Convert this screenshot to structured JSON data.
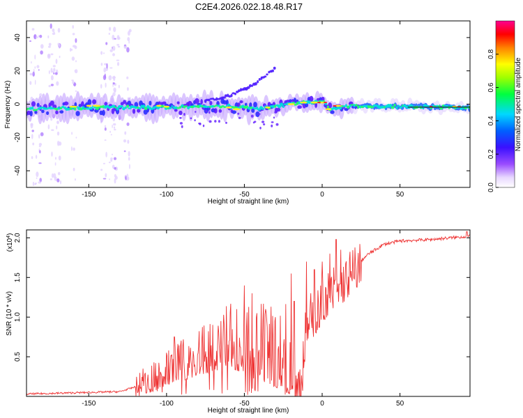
{
  "title": "C2E4.2026.022.18.48.R17",
  "chart_data": [
    {
      "type": "heatmap",
      "xlabel": "Height of straight line (km)",
      "ylabel": "Frequency (Hz)",
      "xlim": [
        -190,
        95
      ],
      "ylim": [
        -50,
        50
      ],
      "xticks": [
        -150,
        -100,
        -50,
        0,
        50
      ],
      "yticks": [
        -40,
        -20,
        0,
        20,
        40
      ],
      "colorbar": {
        "label": "Normalized spectral amplitude",
        "range": [
          0,
          1
        ],
        "ticks": [
          0.0,
          0.2,
          0.4,
          0.6,
          0.8
        ],
        "tick_labels": [
          "0.0",
          "0.2",
          "0.4",
          "0.6",
          "0.8"
        ]
      },
      "features": {
        "main_band_center_hz": [
          [
            -190,
            -3
          ],
          [
            -150,
            -2
          ],
          [
            -100,
            -2
          ],
          [
            -60,
            -1
          ],
          [
            -40,
            -3
          ],
          [
            -20,
            0
          ],
          [
            -10,
            1
          ],
          [
            0,
            2
          ],
          [
            5,
            -3
          ],
          [
            20,
            -1
          ],
          [
            95,
            -2
          ]
        ],
        "diagonal_branch": [
          [
            -75,
            2
          ],
          [
            -60,
            5
          ],
          [
            -45,
            11
          ],
          [
            -35,
            18
          ],
          [
            -30,
            22
          ]
        ]
      }
    },
    {
      "type": "line",
      "xlabel": "Height of straight line (km)",
      "ylabel": "SNR (10 * v/v)",
      "y_multiplier": "(x10",
      "y_exponent": "4",
      "xlim": [
        -190,
        95
      ],
      "ylim": [
        0,
        2.1
      ],
      "xticks": [
        -150,
        -100,
        -50,
        0,
        50
      ],
      "yticks": [
        0.5,
        1.0,
        1.5,
        2.0
      ],
      "ytick_labels": [
        "0.5",
        "1.0",
        "1.5",
        "2.0"
      ],
      "series": [
        {
          "name": "SNR",
          "color": "#ee3333",
          "envelope": [
            [
              -190,
              0.03
            ],
            [
              -150,
              0.05
            ],
            [
              -130,
              0.06
            ],
            [
              -120,
              0.12
            ],
            [
              -110,
              0.22
            ],
            [
              -100,
              0.35
            ],
            [
              -90,
              0.45
            ],
            [
              -80,
              0.55
            ],
            [
              -70,
              0.65
            ],
            [
              -60,
              0.75
            ],
            [
              -50,
              0.7
            ],
            [
              -40,
              0.65
            ],
            [
              -30,
              0.62
            ],
            [
              -20,
              0.55
            ],
            [
              -15,
              0.5
            ],
            [
              -12,
              0.55
            ],
            [
              -10,
              0.95
            ],
            [
              -5,
              1.05
            ],
            [
              0,
              1.2
            ],
            [
              5,
              1.35
            ],
            [
              10,
              1.4
            ],
            [
              15,
              1.5
            ],
            [
              20,
              1.62
            ],
            [
              30,
              1.8
            ],
            [
              40,
              1.92
            ],
            [
              50,
              1.96
            ],
            [
              70,
              1.98
            ],
            [
              95,
              2.02
            ]
          ],
          "spikes": [
            [
              -115,
              0.35
            ],
            [
              -100,
              0.55
            ],
            [
              -95,
              0.75
            ],
            [
              -65,
              0.95
            ],
            [
              -55,
              1.1
            ],
            [
              -50,
              1.4
            ],
            [
              -45,
              1.3
            ],
            [
              -42,
              1.05
            ],
            [
              -30,
              1.0
            ],
            [
              -20,
              1.55
            ],
            [
              -18,
              1.2
            ],
            [
              -10,
              1.7
            ],
            [
              -5,
              1.6
            ],
            [
              0,
              1.7
            ],
            [
              5,
              1.8
            ],
            [
              9,
              1.98
            ],
            [
              12,
              1.85
            ],
            [
              93,
              2.08
            ]
          ]
        }
      ]
    }
  ]
}
